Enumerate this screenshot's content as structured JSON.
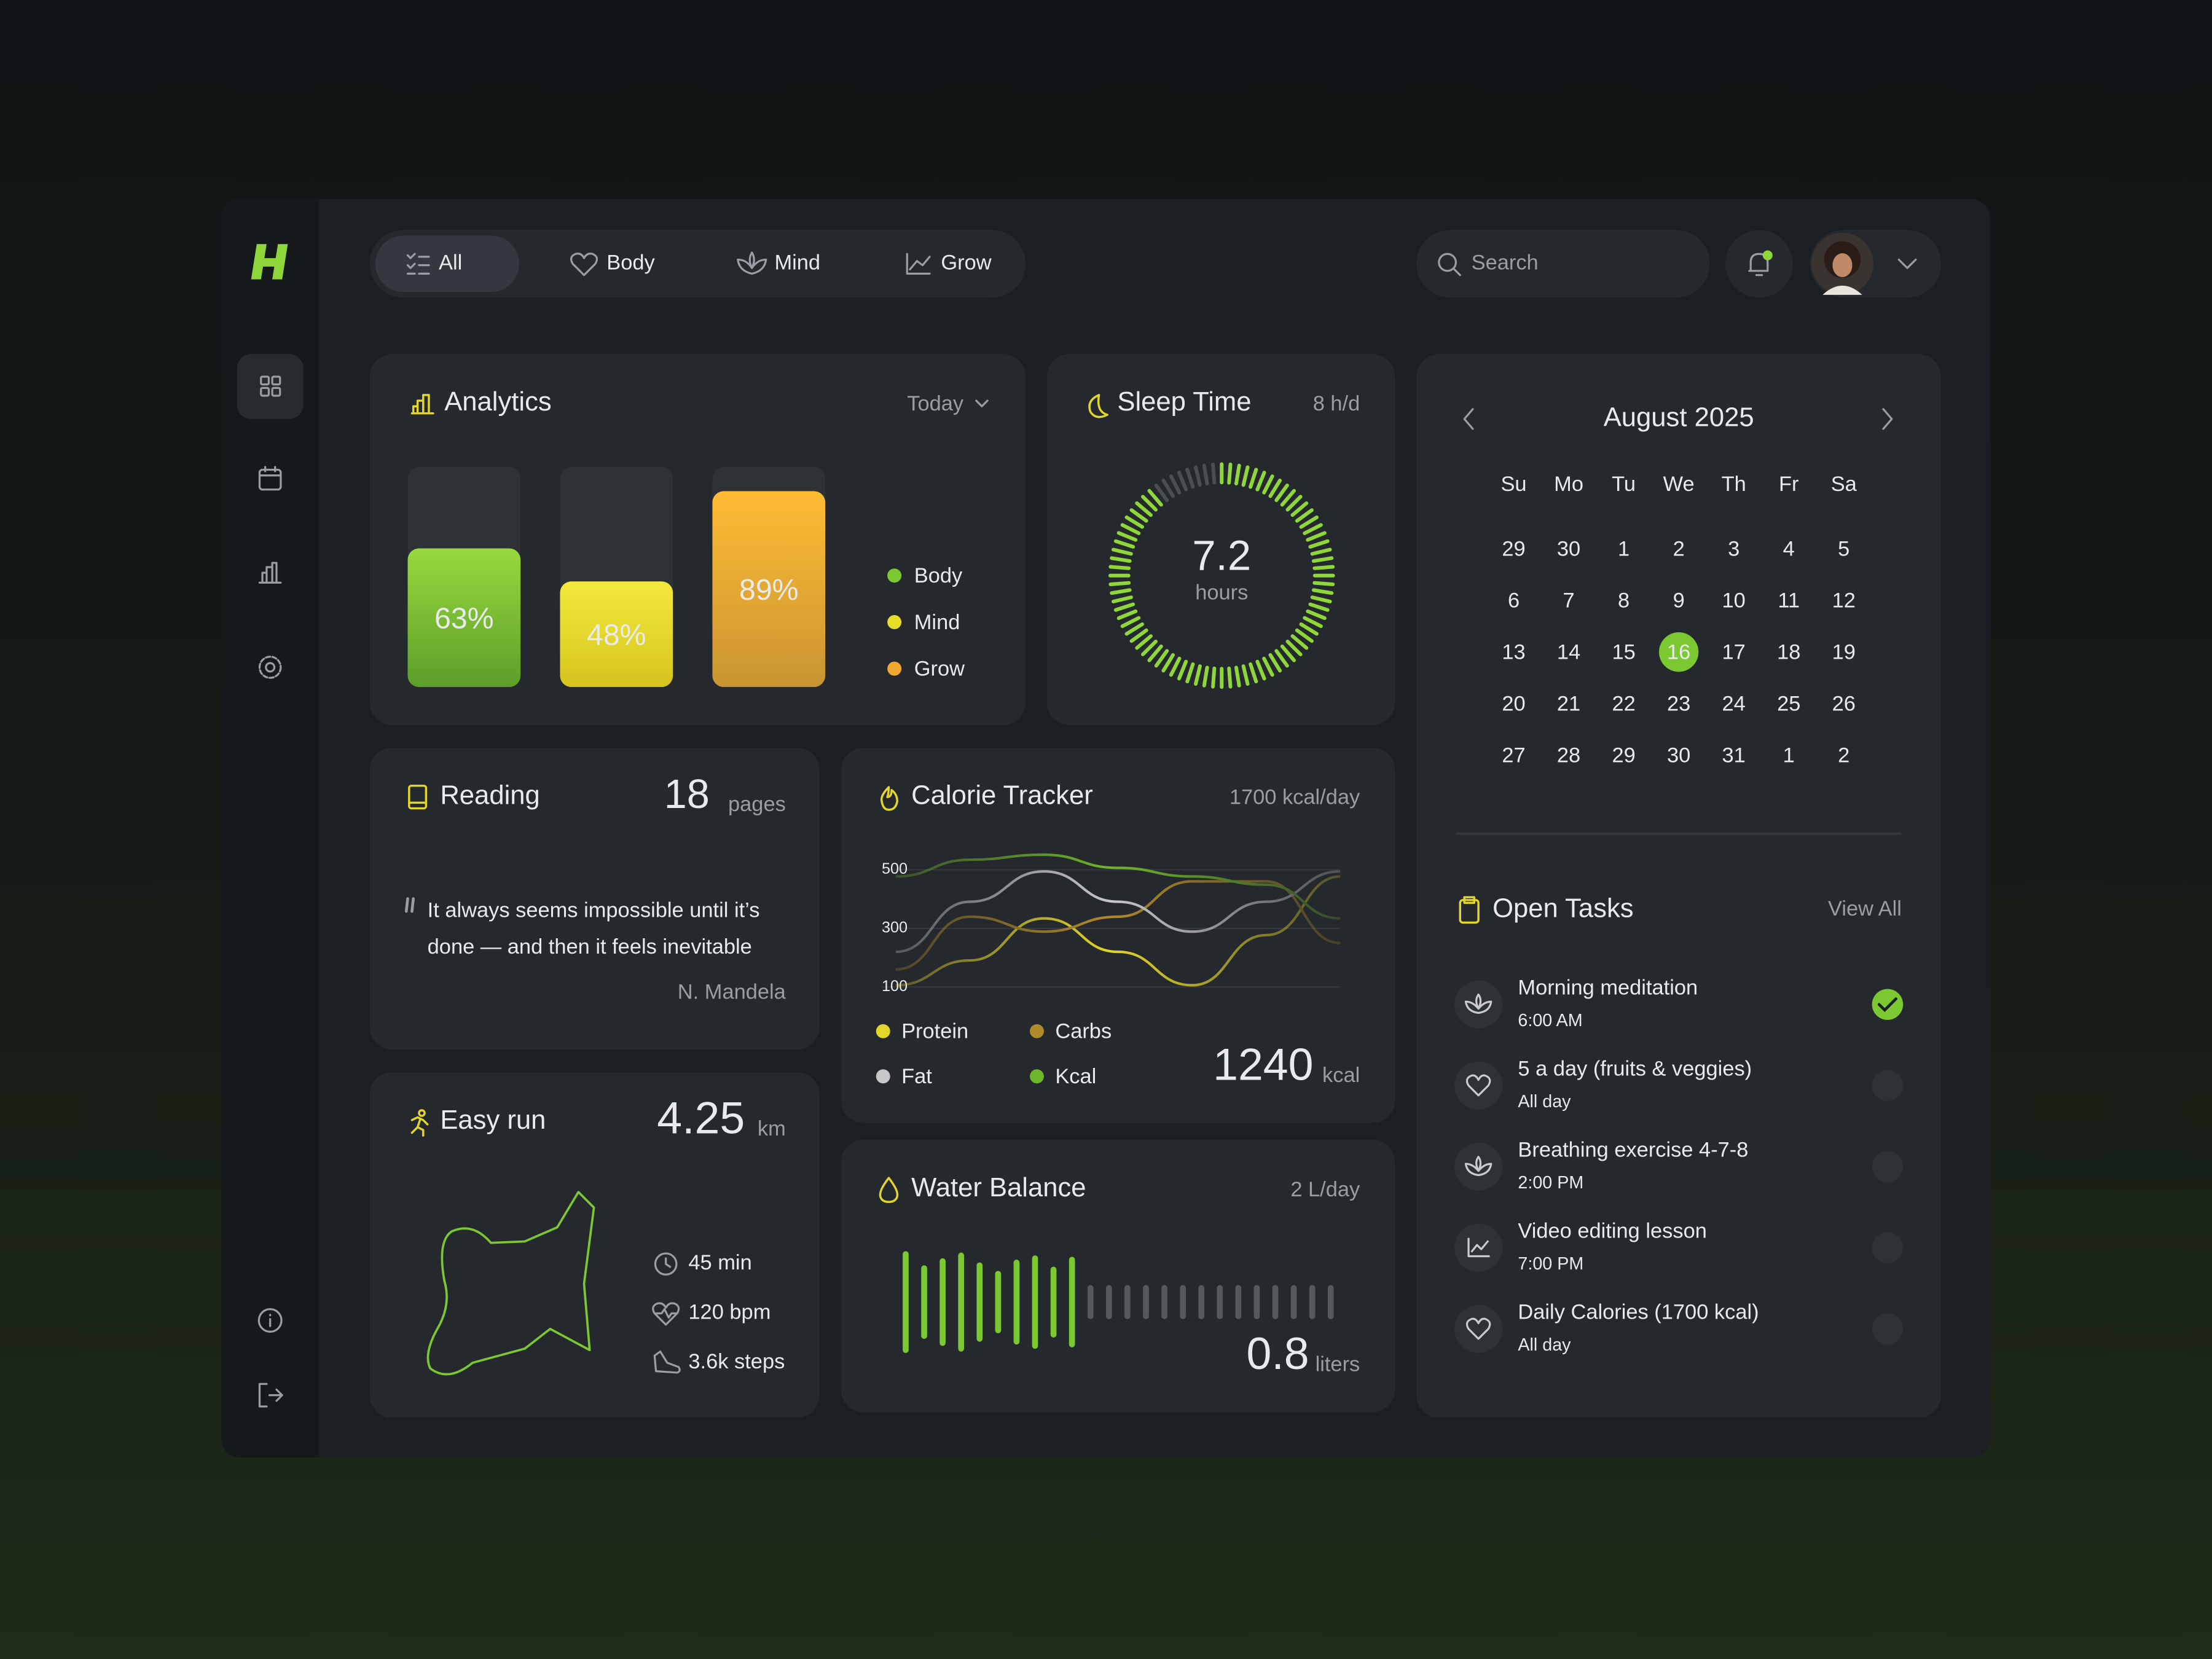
{
  "nav": {
    "tabs": [
      "All",
      "Body",
      "Mind",
      "Grow"
    ],
    "active_tab": 0,
    "search_placeholder": "Search"
  },
  "analytics": {
    "title": "Analytics",
    "period": "Today",
    "ylim": [
      0,
      100
    ],
    "bars": [
      {
        "name": "Body",
        "value": 63,
        "value_label": "63%",
        "color": "#7cc832"
      },
      {
        "name": "Mind",
        "value": 48,
        "value_label": "48%",
        "color": "#e6dc2a"
      },
      {
        "name": "Grow",
        "value": 89,
        "value_label": "89%",
        "color": "#f0a830"
      }
    ]
  },
  "sleep": {
    "title": "Sleep Time",
    "goal": 8,
    "goal_label": "8 h/d",
    "hours": 7.2,
    "unit": "hours"
  },
  "calendar": {
    "month": "August 2025",
    "weekdays": [
      "Su",
      "Mo",
      "Tu",
      "We",
      "Th",
      "Fr",
      "Sa"
    ],
    "prev_month_days": [
      29,
      30
    ],
    "days": [
      1,
      2,
      3,
      4,
      5,
      6,
      7,
      8,
      9,
      10,
      11,
      12,
      13,
      14,
      15,
      16,
      17,
      18,
      19,
      20,
      21,
      22,
      23,
      24,
      25,
      26,
      27,
      28,
      29,
      30,
      31
    ],
    "next_month_days": [
      1,
      2
    ],
    "selected": 16
  },
  "reading": {
    "title": "Reading",
    "pages": 18,
    "unit": "pages",
    "quote_lines": [
      "It always seems impossible until it’s",
      "done — and then it feels inevitable"
    ],
    "author": "N. Mandela"
  },
  "calorie_tracker": {
    "title": "Calorie Tracker",
    "goal_label": "1700 kcal/day",
    "total": 1240,
    "unit": "kcal",
    "chart": {
      "type": "line",
      "categories": [
        null,
        null,
        null,
        null,
        null,
        null,
        null
      ],
      "ylim": [
        60,
        560
      ],
      "yticks": [
        100,
        300,
        500
      ],
      "series": [
        {
          "name": "Protein",
          "color": "#e3d62a",
          "values": [
            106,
            191,
            334,
            220,
            106,
            277,
            477
          ]
        },
        {
          "name": "Carbs",
          "color": "#b08a2a",
          "values": [
            160,
            340,
            289,
            340,
            460,
            460,
            250
          ]
        },
        {
          "name": "Fat",
          "color": "#c8c8c8",
          "values": [
            220,
            391,
            494,
            391,
            289,
            391,
            494
          ]
        },
        {
          "name": "Kcal",
          "color": "#6fb52c",
          "values": [
            477,
            534,
            551,
            506,
            477,
            449,
            334
          ]
        }
      ]
    }
  },
  "easy_run": {
    "title": "Easy run",
    "distance": 4.25,
    "unit": "km",
    "stats": [
      "45 min",
      "120 bpm",
      "3.6k steps"
    ]
  },
  "water": {
    "title": "Water Balance",
    "goal": 2,
    "goal_label": "2 L/day",
    "liters": 0.8,
    "unit": "liters"
  },
  "tasks": {
    "title": "Open Tasks",
    "view_all": "View All",
    "items": [
      {
        "title": "Morning meditation",
        "time": "6:00 AM",
        "done": true
      },
      {
        "title": "5 a day (fruits & veggies)",
        "time": "All day",
        "done": false
      },
      {
        "title": "Breathing exercise 4-7-8",
        "time": "2:00 PM",
        "done": false
      },
      {
        "title": "Video editing lesson",
        "time": "7:00 PM",
        "done": false
      },
      {
        "title": "Daily Calories (1700 kcal)",
        "time": "All day",
        "done": false
      }
    ]
  }
}
